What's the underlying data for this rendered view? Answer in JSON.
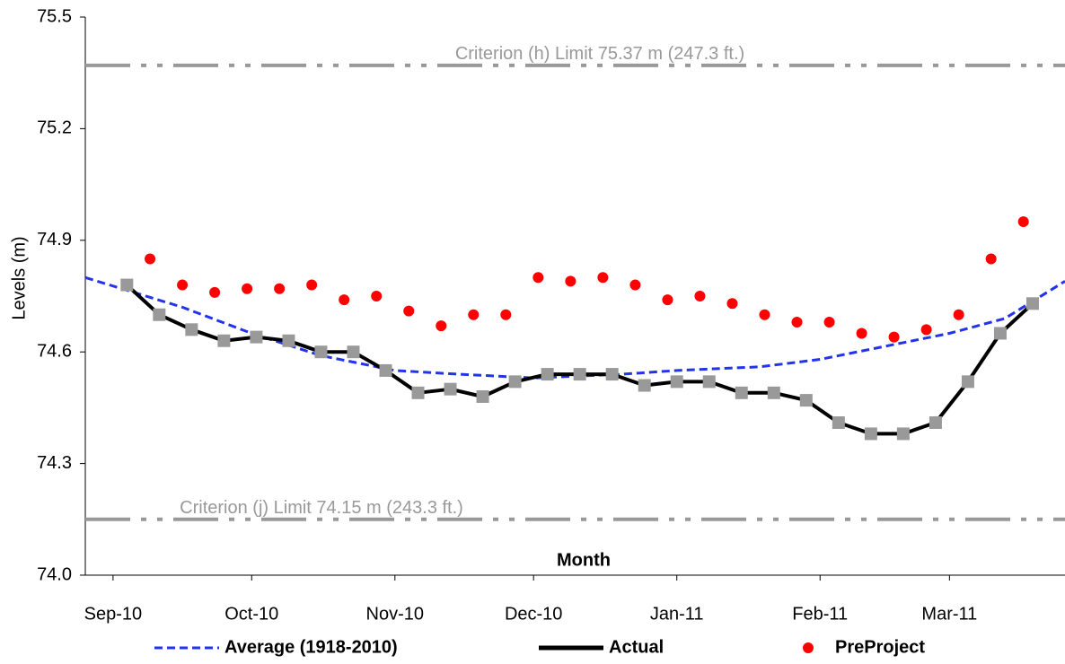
{
  "chart_data": {
    "type": "line",
    "y_label": "Levels (m)",
    "x_label": "Month",
    "xlim": [
      -6,
      206
    ],
    "xticks": [
      {
        "value": 0,
        "label": "Sep-10"
      },
      {
        "value": 30,
        "label": "Oct-10"
      },
      {
        "value": 61,
        "label": "Nov-10"
      },
      {
        "value": 91,
        "label": "Dec-10"
      },
      {
        "value": 122,
        "label": "Jan-11"
      },
      {
        "value": 153,
        "label": "Feb-11"
      },
      {
        "value": 181,
        "label": "Mar-11"
      }
    ],
    "ylim": [
      74.0,
      75.5
    ],
    "yticks": [
      {
        "value": 74,
        "label": "74.0"
      },
      74.3,
      74.6,
      74.9,
      75.2,
      75.5
    ],
    "grid": false,
    "legend": "bottom",
    "reference_lines": [
      {
        "value": 75.37,
        "label": "Criterion (h) Limit 75.37 m (247.3 ft.)",
        "color": "#999999"
      },
      {
        "value": 74.15,
        "label": "Criterion (j) Limit 74.15 m (243.3 ft.)",
        "color": "#999999"
      }
    ],
    "series": [
      {
        "name": "Average (1918-2010)",
        "color": "#2233ee",
        "style": "dashed",
        "x": [
          -6,
          15,
          30,
          45,
          61,
          75,
          91,
          110,
          122,
          140,
          153,
          165,
          181,
          193,
          206
        ],
        "values": [
          74.8,
          74.72,
          74.65,
          74.59,
          74.55,
          74.54,
          74.53,
          74.54,
          74.55,
          74.56,
          74.58,
          74.61,
          74.65,
          74.69,
          74.79
        ]
      },
      {
        "name": "Actual",
        "color": "#000000",
        "marker_color": "#999999",
        "style": "solid",
        "x": [
          3,
          10,
          17,
          24,
          31,
          38,
          45,
          52,
          59,
          66,
          73,
          80,
          87,
          94,
          101,
          108,
          115,
          122,
          129,
          136,
          143,
          150,
          157,
          164,
          171,
          178,
          185,
          192,
          199
        ],
        "values": [
          74.78,
          74.7,
          74.66,
          74.63,
          74.64,
          74.63,
          74.6,
          74.6,
          74.55,
          74.49,
          74.5,
          74.48,
          74.52,
          74.54,
          74.54,
          74.54,
          74.51,
          74.52,
          74.52,
          74.49,
          74.49,
          74.47,
          74.41,
          74.38,
          74.38,
          74.41,
          74.52,
          74.65,
          74.73
        ]
      },
      {
        "name": "PreProject",
        "color": "#ff0000",
        "style": "marker",
        "x": [
          8,
          15,
          22,
          29,
          36,
          43,
          50,
          57,
          64,
          71,
          78,
          85,
          92,
          99,
          106,
          113,
          120,
          127,
          134,
          141,
          148,
          155,
          162,
          169,
          176,
          183,
          190,
          197
        ],
        "values": [
          74.85,
          74.78,
          74.76,
          74.77,
          74.77,
          74.78,
          74.74,
          74.75,
          74.71,
          74.67,
          74.7,
          74.7,
          74.8,
          74.79,
          74.8,
          74.78,
          74.74,
          74.75,
          74.73,
          74.7,
          74.68,
          74.68,
          74.65,
          74.64,
          74.66,
          74.7,
          74.85,
          74.95
        ]
      }
    ]
  }
}
